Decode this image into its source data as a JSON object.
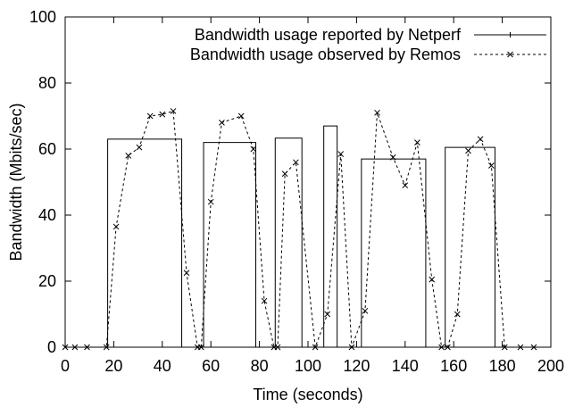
{
  "chart_data": {
    "type": "line",
    "xlabel": "Time (seconds)",
    "ylabel": "Bandwidth (Mbits/sec)",
    "xlim": [
      0,
      200
    ],
    "ylim": [
      0,
      100
    ],
    "xticks": [
      0,
      20,
      40,
      60,
      80,
      100,
      120,
      140,
      160,
      180,
      200
    ],
    "yticks": [
      0,
      20,
      40,
      60,
      80,
      100
    ],
    "grid": false,
    "legend_position": "top-right",
    "series": [
      {
        "name": "Bandwidth usage reported by Netperf",
        "style": "solid",
        "marker": "plus",
        "color": "#000000",
        "points": [
          [
            0,
            0
          ],
          [
            17.5,
            0
          ],
          [
            17.5,
            63
          ],
          [
            48,
            63
          ],
          [
            48,
            0
          ],
          [
            57,
            0
          ],
          [
            57,
            62
          ],
          [
            78.5,
            62
          ],
          [
            78.5,
            0
          ],
          [
            86.5,
            0
          ],
          [
            86.5,
            63.3
          ],
          [
            97.5,
            63.3
          ],
          [
            97.5,
            0
          ],
          [
            106.5,
            0
          ],
          [
            106.5,
            67
          ],
          [
            112,
            67
          ],
          [
            112,
            0
          ],
          [
            122,
            0
          ],
          [
            122,
            57
          ],
          [
            148.5,
            57
          ],
          [
            148.5,
            0
          ],
          [
            156.5,
            0
          ],
          [
            156.5,
            60.5
          ],
          [
            177,
            60.5
          ],
          [
            177,
            0
          ],
          [
            194,
            0
          ]
        ]
      },
      {
        "name": "Bandwidth usage observed by Remos",
        "style": "dashed",
        "marker": "x",
        "color": "#000000",
        "points": [
          [
            0,
            0
          ],
          [
            4,
            0
          ],
          [
            9,
            0
          ],
          [
            17,
            0
          ],
          [
            21,
            36.5
          ],
          [
            26,
            58
          ],
          [
            30.5,
            60.5
          ],
          [
            35,
            70
          ],
          [
            40,
            70.5
          ],
          [
            44.5,
            71.5
          ],
          [
            50,
            22.5
          ],
          [
            54.5,
            0
          ],
          [
            56,
            0
          ],
          [
            60,
            44
          ],
          [
            64.5,
            68
          ],
          [
            72.5,
            70
          ],
          [
            77.5,
            60
          ],
          [
            82,
            14
          ],
          [
            86,
            0
          ],
          [
            87.5,
            0
          ],
          [
            90.5,
            52.5
          ],
          [
            95,
            56
          ],
          [
            103,
            0
          ],
          [
            108,
            10
          ],
          [
            113.5,
            58.5
          ],
          [
            118,
            0
          ],
          [
            123.5,
            11
          ],
          [
            128.5,
            71
          ],
          [
            135,
            57.5
          ],
          [
            140,
            49
          ],
          [
            145,
            62
          ],
          [
            151,
            20.5
          ],
          [
            155,
            0
          ],
          [
            157.5,
            0
          ],
          [
            161.5,
            10
          ],
          [
            166,
            59.5
          ],
          [
            171,
            63
          ],
          [
            175.5,
            55
          ],
          [
            181,
            0
          ],
          [
            187.5,
            0
          ],
          [
            193,
            0
          ]
        ]
      }
    ]
  }
}
